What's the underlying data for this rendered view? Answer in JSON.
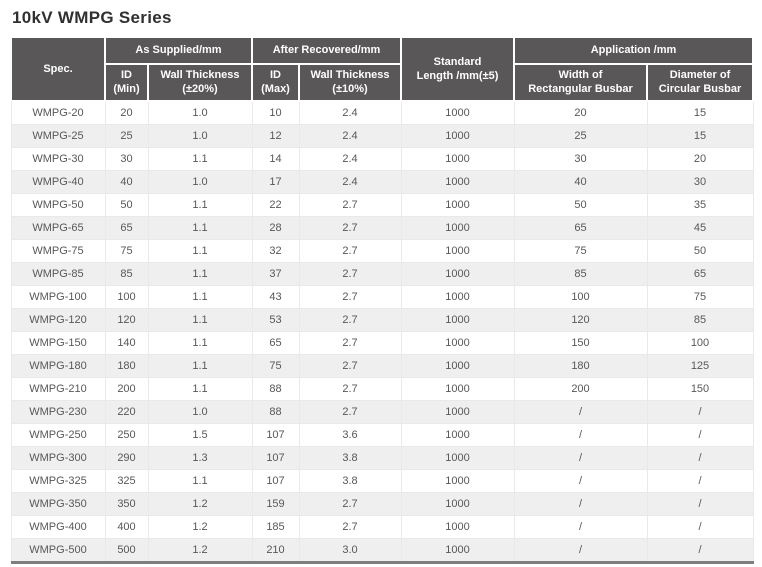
{
  "title": "10kV WMPG Series",
  "colors": {
    "header_bg": "#595757",
    "header_text": "#ffffff",
    "row_alt_bg": "#efefef",
    "body_text": "#595757",
    "title_text": "#303030",
    "bottom_border": "#7e7e7e"
  },
  "table": {
    "header": {
      "spec": "Spec.",
      "as_supplied": "As Supplied/mm",
      "after_recovered": "After Recovered/mm",
      "standard_length": "Standard\nLength /mm(±5)",
      "application": "Application /mm",
      "id_min": "ID\n(Min)",
      "wall_thickness_20": "Wall Thickness\n(±20%)",
      "id_max": "ID\n(Max)",
      "wall_thickness_10": "Wall Thickness\n(±10%)",
      "width_rectangular_busbar": "Width of\nRectangular Busbar",
      "diameter_circular_busbar": "Diameter of\nCircular Busbar"
    },
    "rows": [
      [
        "WMPG-20",
        "20",
        "1.0",
        "10",
        "2.4",
        "1000",
        "20",
        "15"
      ],
      [
        "WMPG-25",
        "25",
        "1.0",
        "12",
        "2.4",
        "1000",
        "25",
        "15"
      ],
      [
        "WMPG-30",
        "30",
        "1.1",
        "14",
        "2.4",
        "1000",
        "30",
        "20"
      ],
      [
        "WMPG-40",
        "40",
        "1.0",
        "17",
        "2.4",
        "1000",
        "40",
        "30"
      ],
      [
        "WMPG-50",
        "50",
        "1.1",
        "22",
        "2.7",
        "1000",
        "50",
        "35"
      ],
      [
        "WMPG-65",
        "65",
        "1.1",
        "28",
        "2.7",
        "1000",
        "65",
        "45"
      ],
      [
        "WMPG-75",
        "75",
        "1.1",
        "32",
        "2.7",
        "1000",
        "75",
        "50"
      ],
      [
        "WMPG-85",
        "85",
        "1.1",
        "37",
        "2.7",
        "1000",
        "85",
        "65"
      ],
      [
        "WMPG-100",
        "100",
        "1.1",
        "43",
        "2.7",
        "1000",
        "100",
        "75"
      ],
      [
        "WMPG-120",
        "120",
        "1.1",
        "53",
        "2.7",
        "1000",
        "120",
        "85"
      ],
      [
        "WMPG-150",
        "140",
        "1.1",
        "65",
        "2.7",
        "1000",
        "150",
        "100"
      ],
      [
        "WMPG-180",
        "180",
        "1.1",
        "75",
        "2.7",
        "1000",
        "180",
        "125"
      ],
      [
        "WMPG-210",
        "200",
        "1.1",
        "88",
        "2.7",
        "1000",
        "200",
        "150"
      ],
      [
        "WMPG-230",
        "220",
        "1.0",
        "88",
        "2.7",
        "1000",
        "/",
        "/"
      ],
      [
        "WMPG-250",
        "250",
        "1.5",
        "107",
        "3.6",
        "1000",
        "/",
        "/"
      ],
      [
        "WMPG-300",
        "290",
        "1.3",
        "107",
        "3.8",
        "1000",
        "/",
        "/"
      ],
      [
        "WMPG-325",
        "325",
        "1.1",
        "107",
        "3.8",
        "1000",
        "/",
        "/"
      ],
      [
        "WMPG-350",
        "350",
        "1.2",
        "159",
        "2.7",
        "1000",
        "/",
        "/"
      ],
      [
        "WMPG-400",
        "400",
        "1.2",
        "185",
        "2.7",
        "1000",
        "/",
        "/"
      ],
      [
        "WMPG-500",
        "500",
        "1.2",
        "210",
        "3.0",
        "1000",
        "/",
        "/"
      ]
    ]
  }
}
